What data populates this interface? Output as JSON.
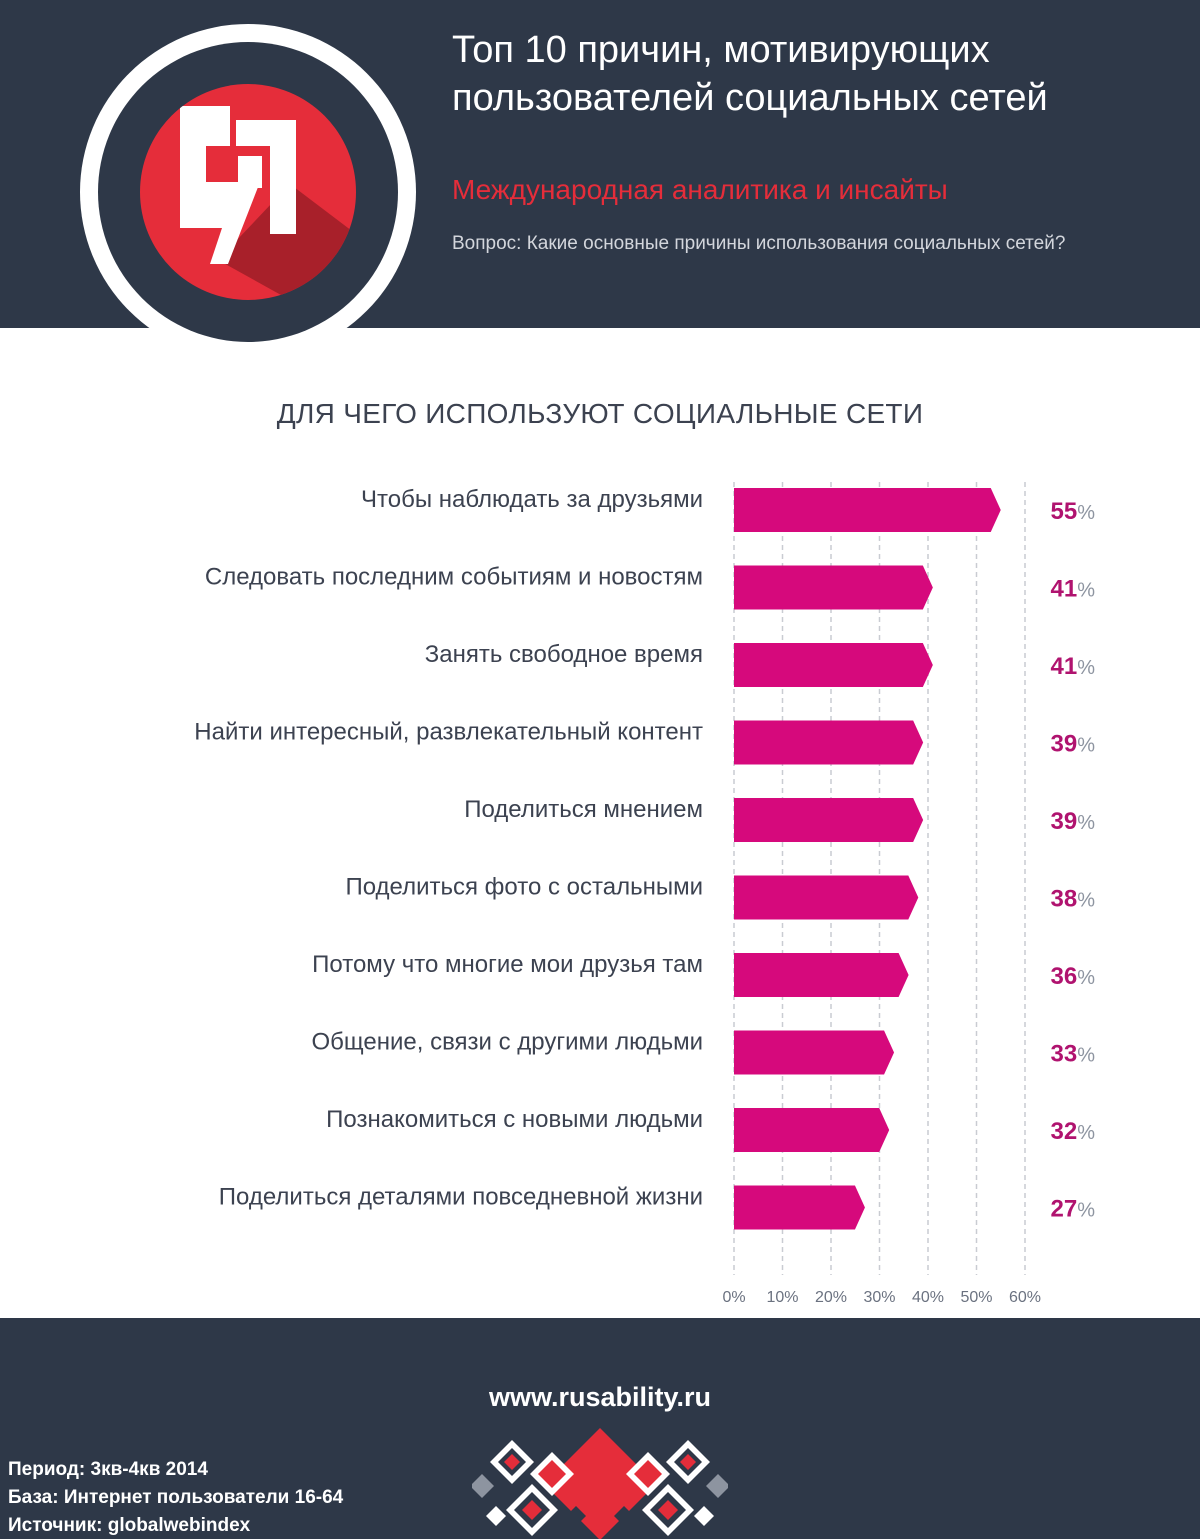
{
  "header": {
    "title": "Топ 10 причин, мотивирующих пользователей социальных сетей",
    "subtitle": "Международная аналитика и инсайты",
    "question": "Вопрос: Какие основные причины использования социальных сетей?",
    "logo_icon": "quote-mark-logo-icon"
  },
  "chart_data": {
    "type": "bar",
    "orientation": "horizontal",
    "title": "ДЛЯ ЧЕГО ИСПОЛЬЗУЮТ СОЦИАЛЬНЫЕ СЕТИ",
    "categories": [
      "Чтобы наблюдать за друзьями",
      "Следовать последним событиям и новостям",
      "Занять свободное время",
      "Найти интересный, развлекательный контент",
      "Поделиться мнением",
      "Поделиться фото с остальными",
      "Потому что многие мои друзья там",
      "Общение, связи с другими людьми",
      "Познакомиться с новыми людьми",
      "Поделиться деталями повседневной жизни"
    ],
    "values": [
      55,
      41,
      41,
      39,
      39,
      38,
      36,
      33,
      32,
      27
    ],
    "value_suffix": "%",
    "xlim": [
      0,
      60
    ],
    "xticks": [
      "0%",
      "10%",
      "20%",
      "30%",
      "40%",
      "50%",
      "60%"
    ],
    "grid": true,
    "bar_color": "#d6097c",
    "value_color": "#b0136f"
  },
  "footer": {
    "site": "www.rusability.ru",
    "period": "Период: 3кв-4кв 2014",
    "base": "База: Интернет пользователи 16-64",
    "source": "Источник: globalwebindex"
  },
  "colors": {
    "dark": "#2e3848",
    "accent_red": "#e52d3a",
    "bar": "#d6097c",
    "text": "#3c4250",
    "grid": "#c9ccd2"
  }
}
